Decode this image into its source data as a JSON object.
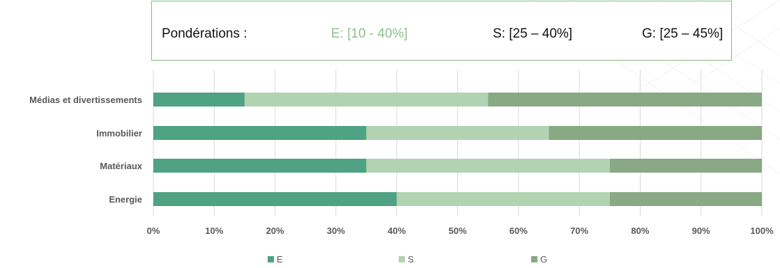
{
  "weights": {
    "label": "Pondérations :",
    "e": "E: [10 - 40%]",
    "s": "S: [25 – 40%]",
    "g": "G: [25 – 45%]",
    "e_color": "#8fbf8f",
    "text_color": "#111111"
  },
  "chart_data": {
    "type": "bar",
    "orientation": "horizontal",
    "stacked": "percent",
    "categories": [
      "Médias et divertissements",
      "Immobilier",
      "Matériaux",
      "Energie"
    ],
    "series": [
      {
        "name": "E",
        "color": "#4fa283",
        "values": [
          15,
          35,
          35,
          40
        ]
      },
      {
        "name": "S",
        "color": "#b2d3b2",
        "values": [
          40,
          30,
          40,
          35
        ]
      },
      {
        "name": "G",
        "color": "#88a983",
        "values": [
          45,
          35,
          25,
          25
        ]
      }
    ],
    "xlim": [
      0,
      100
    ],
    "xticks": [
      "0%",
      "10%",
      "20%",
      "30%",
      "40%",
      "50%",
      "60%",
      "70%",
      "80%",
      "90%",
      "100%"
    ],
    "grid": true,
    "legend_position": "bottom"
  }
}
